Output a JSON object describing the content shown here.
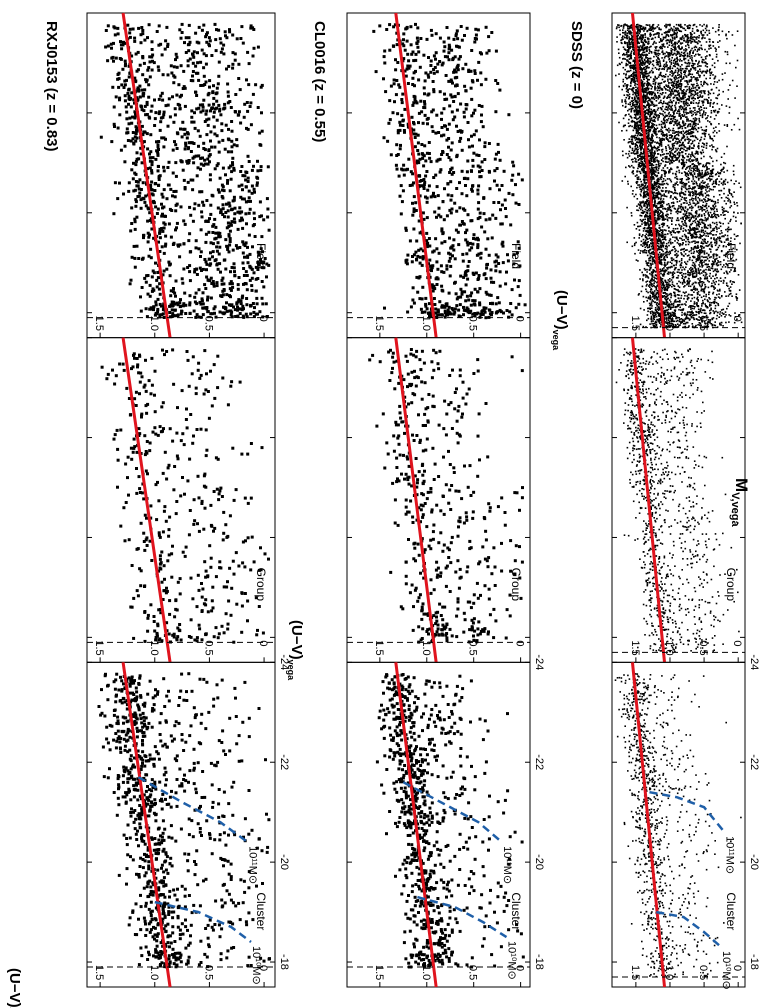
{
  "figure": {
    "xaxis_label": "M",
    "xaxis_label_sub": "V,vega",
    "yaxis_label": "(U−V)",
    "yaxis_label_sub": "vega",
    "orientation": "rotated-90-clockwise"
  },
  "colors": {
    "red_sequence": "#e0141e",
    "mass_limit": "#1f5fa8",
    "points": "#000000",
    "dashed_limit": "#000000"
  },
  "chart_data": [
    {
      "type": "scatter",
      "title": "RXJ0153  (z = 0.83)",
      "xlabel": "M_V,vega",
      "ylabel": "(U−V)_vega",
      "xlim": [
        -24,
        -17.5
      ],
      "ylim": [
        -0.1,
        1.62
      ],
      "xticks": [
        "-24",
        "-22",
        "-20",
        "-18"
      ],
      "yticks": [
        "0",
        "0.5",
        "1.0",
        "1.5"
      ],
      "magnitude_limit_x": -17.9,
      "red_sequence": {
        "x": [
          -24,
          -17.5
        ],
        "y": [
          1.29,
          0.86
        ]
      },
      "panels": [
        {
          "label": "Field",
          "n_points": 1300,
          "point_size": 3.0,
          "density": "high",
          "red_fraction": 0.35,
          "blue_center": 0.35,
          "faint_bias": 1.2
        },
        {
          "label": "Group",
          "n_points": 430,
          "point_size": 3.0,
          "density": "medium",
          "red_fraction": 0.45,
          "blue_center": 0.45,
          "faint_bias": 1.1
        },
        {
          "label": "Cluster",
          "n_points": 950,
          "point_size": 3.0,
          "density": "high",
          "red_fraction": 0.7,
          "blue_center": 0.45,
          "faint_bias": 1.0,
          "mass_limits": [
            {
              "label": "10¹¹M⊙",
              "x": [
                -21.7,
                -21.2,
                -20.8,
                -20.4
              ],
              "y": [
                1.15,
                0.75,
                0.4,
                0.15
              ]
            },
            {
              "label": "10¹⁰M⊙",
              "x": [
                -19.2,
                -19.0,
                -18.7,
                -18.4
              ],
              "y": [
                1.0,
                0.6,
                0.3,
                0.12
              ]
            }
          ]
        }
      ]
    },
    {
      "type": "scatter",
      "title": "CL0016  (z = 0.55)",
      "xlabel": "M_V,vega",
      "ylabel": "(U−V)_vega",
      "xlim": [
        -24,
        -17.5
      ],
      "ylim": [
        -0.1,
        1.85
      ],
      "xticks": [
        "-24",
        "-22",
        "-20",
        "-18"
      ],
      "yticks": [
        "0",
        "0.5",
        "1.0",
        "1.5"
      ],
      "magnitude_limit_x": -17.9,
      "red_sequence": {
        "x": [
          -24,
          -17.5
        ],
        "y": [
          1.33,
          0.9
        ]
      },
      "panels": [
        {
          "label": "Field",
          "n_points": 900,
          "point_size": 3.0,
          "density": "high",
          "red_fraction": 0.3,
          "blue_center": 0.5,
          "faint_bias": 1.3
        },
        {
          "label": "Group",
          "n_points": 470,
          "point_size": 3.0,
          "density": "medium",
          "red_fraction": 0.4,
          "blue_center": 0.55,
          "faint_bias": 1.1
        },
        {
          "label": "Cluster",
          "n_points": 850,
          "point_size": 3.0,
          "density": "high",
          "red_fraction": 0.75,
          "blue_center": 0.55,
          "faint_bias": 1.0,
          "mass_limits": [
            {
              "label": "10¹¹M⊙",
              "x": [
                -21.6,
                -21.2,
                -20.8,
                -20.4
              ],
              "y": [
                1.25,
                0.85,
                0.45,
                0.2
              ]
            },
            {
              "label": "10¹⁰M⊙",
              "x": [
                -19.3,
                -19.1,
                -18.8,
                -18.5
              ],
              "y": [
                1.1,
                0.7,
                0.4,
                0.15
              ]
            }
          ]
        }
      ]
    },
    {
      "type": "scatter",
      "title": "SDSS  (z = 0)",
      "xlabel": "M_V,vega",
      "ylabel": "(U−V)_vega",
      "xlim": [
        -24,
        -17.5
      ],
      "ylim": [
        -0.1,
        1.85
      ],
      "xticks": [
        "-24",
        "-22",
        "-20",
        "-18"
      ],
      "yticks": [
        "0",
        "0.5",
        "1.0",
        "1.5"
      ],
      "magnitude_limit_x": -17.7,
      "red_sequence": {
        "x": [
          -24,
          -17.5
        ],
        "y": [
          1.55,
          1.08
        ]
      },
      "panels": [
        {
          "label": "Field",
          "n_points": 7000,
          "point_size": 1.6,
          "density": "very high",
          "red_fraction": 0.45,
          "blue_center": 0.6,
          "faint_bias": 1.0
        },
        {
          "label": "Group",
          "n_points": 1200,
          "point_size": 1.6,
          "density": "medium",
          "red_fraction": 0.55,
          "blue_center": 0.7,
          "faint_bias": 1.0
        },
        {
          "label": "Cluster",
          "n_points": 1000,
          "point_size": 1.6,
          "density": "medium",
          "red_fraction": 0.7,
          "blue_center": 0.75,
          "faint_bias": 1.0,
          "mass_limits": [
            {
              "label": "10¹¹M⊙",
              "x": [
                -21.4,
                -21.3,
                -21.1,
                -20.6
              ],
              "y": [
                1.3,
                0.9,
                0.5,
                0.2
              ]
            },
            {
              "label": "10¹⁰M⊙",
              "x": [
                -19.0,
                -18.9,
                -18.6,
                -18.3
              ],
              "y": [
                1.2,
                0.8,
                0.5,
                0.25
              ]
            }
          ]
        }
      ]
    }
  ]
}
